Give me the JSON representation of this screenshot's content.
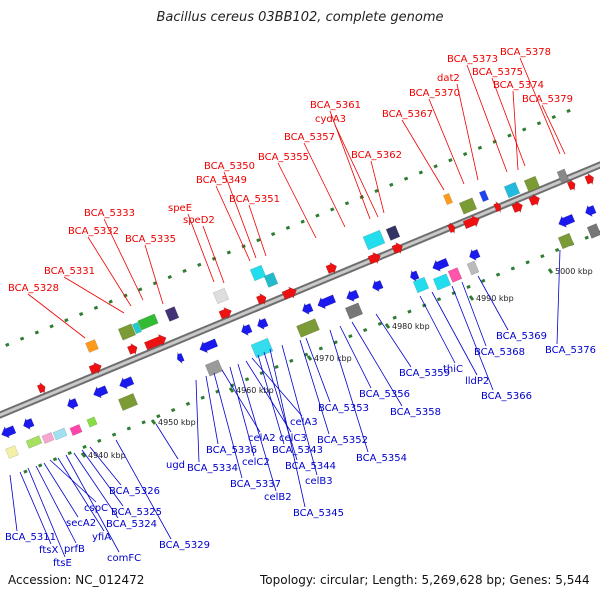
{
  "title": "Bacillus cereus 03BB102, complete genome",
  "footer": {
    "accession": "Accession: NC_012472",
    "info": "Topology: circular; Length: 5,269,628 bp; Genes: 5,544"
  },
  "colors": {
    "forward_label": "#ee0000",
    "reverse_label": "#0000cc",
    "backbone": "#8a8a8a",
    "tick": "#2e7d32",
    "forward_arrow": "#ee1111",
    "reverse_arrow": "#1a1aee"
  },
  "scale_labels": [
    "4940 kbp",
    "4950 kbp",
    "4960 kbp",
    "4970 kbp",
    "4980 kbp",
    "4990 kbp",
    "5000 kbp"
  ],
  "forward_genes": [
    "BCA_5328",
    "BCA_5331",
    "BCA_5332",
    "BCA_5333",
    "BCA_5335",
    "speE",
    "speD2",
    "BCA_5349",
    "BCA_5350",
    "BCA_5351",
    "BCA_5355",
    "BCA_5357",
    "BCA_5361",
    "cydA3",
    "BCA_5362",
    "BCA_5367",
    "BCA_5370",
    "dat2",
    "BCA_5373",
    "BCA_5374",
    "BCA_5375",
    "BCA_5378",
    "BCA_5379"
  ],
  "reverse_genes": [
    "BCA_5311",
    "ftsX",
    "ftsE",
    "prfB",
    "secA2",
    "cspC",
    "yfiA",
    "comFC",
    "BCA_5324",
    "BCA_5325",
    "BCA_5326",
    "BCA_5329",
    "ugd",
    "BCA_5334",
    "BCA_5336",
    "BCA_5337",
    "celA2",
    "celC2",
    "celB2",
    "celC3",
    "celA3",
    "BCA_5343",
    "BCA_5344",
    "BCA_5345",
    "celB3",
    "BCA_5352",
    "BCA_5353",
    "BCA_5354",
    "BCA_5356",
    "BCA_5358",
    "BCA_5359",
    "thiC",
    "lldP2",
    "BCA_5366",
    "BCA_5368",
    "BCA_5369",
    "BCA_5376"
  ]
}
